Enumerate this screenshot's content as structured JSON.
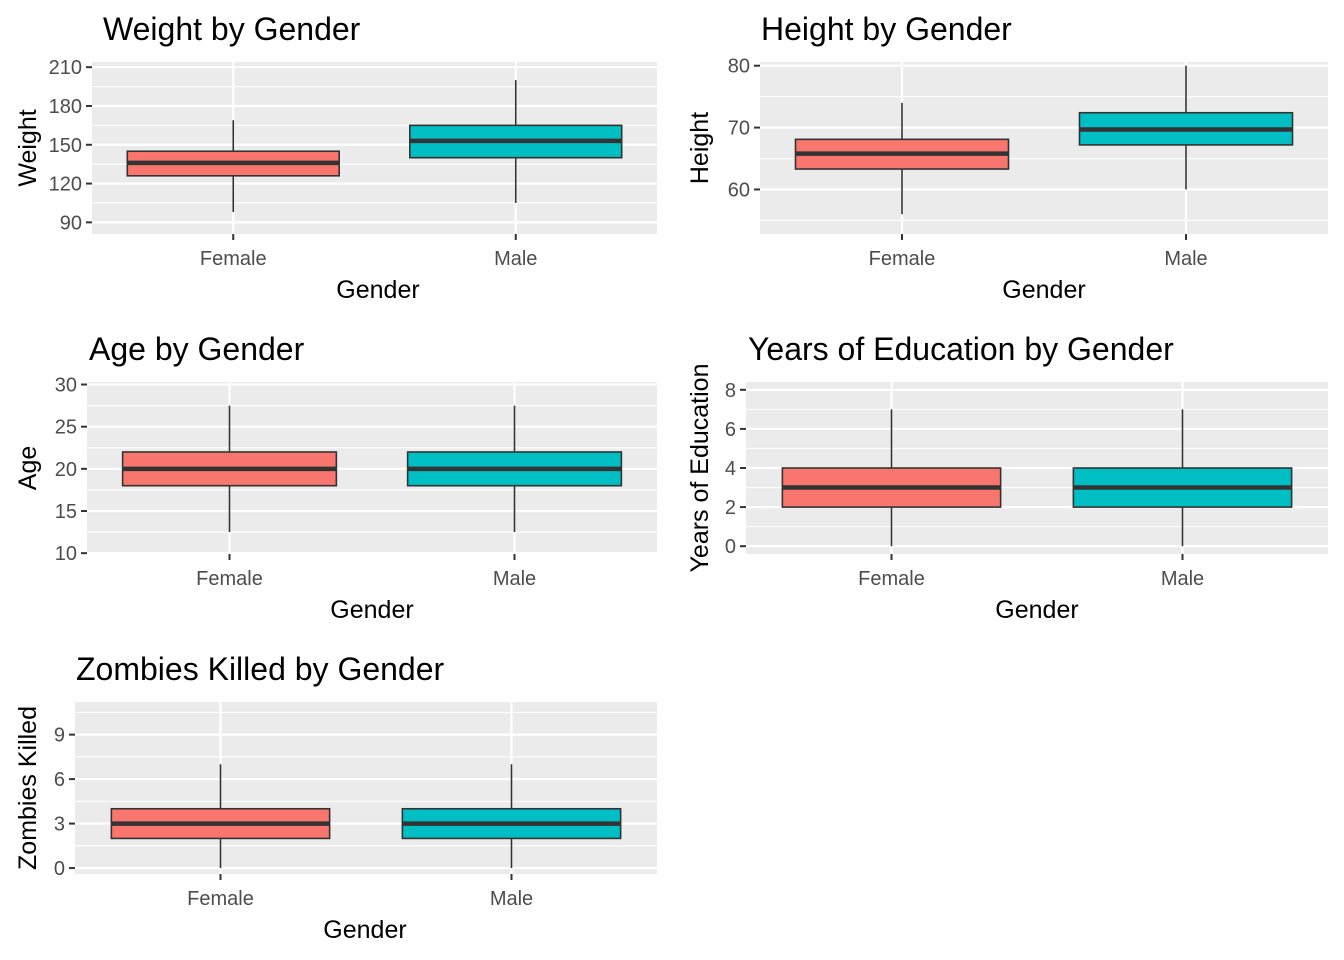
{
  "colors": {
    "female": "#F8766D",
    "male": "#00BFC4",
    "panel_bg": "#EBEBEB",
    "grid": "#FFFFFF",
    "median": "#333333",
    "tick_text": "#4D4D4D"
  },
  "chart_data": [
    {
      "type": "box",
      "title": "Weight by Gender",
      "xlabel": "Gender",
      "ylabel": "Weight",
      "categories": [
        "Female",
        "Male"
      ],
      "yticks": [
        90,
        120,
        150,
        180,
        210
      ],
      "ytick_labels": [
        "90",
        "120",
        "150",
        "180",
        "210"
      ],
      "ylim": [
        81,
        214
      ],
      "boxes": [
        {
          "group": "Female",
          "min": 98,
          "q1": 126,
          "median": 136,
          "q3": 145,
          "max": 169
        },
        {
          "group": "Male",
          "min": 105,
          "q1": 140,
          "median": 153,
          "q3": 165,
          "max": 200
        }
      ],
      "grid": true,
      "legend": "none"
    },
    {
      "type": "box",
      "title": "Height by Gender",
      "xlabel": "Gender",
      "ylabel": "Height",
      "categories": [
        "Female",
        "Male"
      ],
      "yticks": [
        60,
        70,
        80
      ],
      "ytick_labels": [
        "60",
        "70",
        "80"
      ],
      "ylim": [
        52.8,
        80.6
      ],
      "boxes": [
        {
          "group": "Female",
          "min": 56,
          "q1": 63.3,
          "median": 65.8,
          "q3": 68.1,
          "max": 74
        },
        {
          "group": "Male",
          "min": 60,
          "q1": 67.2,
          "median": 69.7,
          "q3": 72.4,
          "max": 80
        }
      ],
      "grid": true,
      "legend": "none"
    },
    {
      "type": "box",
      "title": "Age by Gender",
      "xlabel": "Gender",
      "ylabel": "Age",
      "categories": [
        "Female",
        "Male"
      ],
      "yticks": [
        10,
        15,
        20,
        25,
        30
      ],
      "ytick_labels": [
        "10",
        "15",
        "20",
        "25",
        "30"
      ],
      "ylim": [
        9.9,
        30.3
      ],
      "boxes": [
        {
          "group": "Female",
          "min": 12.5,
          "q1": 18,
          "median": 20,
          "q3": 22,
          "max": 27.5
        },
        {
          "group": "Male",
          "min": 12.5,
          "q1": 18,
          "median": 20,
          "q3": 22,
          "max": 27.5
        }
      ],
      "grid": true,
      "legend": "none"
    },
    {
      "type": "box",
      "title": "Years of Education by Gender",
      "xlabel": "Gender",
      "ylabel": "Years of Education",
      "categories": [
        "Female",
        "Male"
      ],
      "yticks": [
        0,
        2,
        4,
        6,
        8
      ],
      "ytick_labels": [
        "0",
        "2",
        "4",
        "6",
        "8"
      ],
      "ylim": [
        -0.4,
        8.4
      ],
      "boxes": [
        {
          "group": "Female",
          "min": 0,
          "q1": 2,
          "median": 3,
          "q3": 4,
          "max": 7
        },
        {
          "group": "Male",
          "min": 0,
          "q1": 2,
          "median": 3,
          "q3": 4,
          "max": 7
        }
      ],
      "grid": true,
      "legend": "none"
    },
    {
      "type": "box",
      "title": "Zombies Killed by Gender",
      "xlabel": "Gender",
      "ylabel": "Zombies Killed",
      "categories": [
        "Female",
        "Male"
      ],
      "yticks": [
        0,
        3,
        6,
        9
      ],
      "ytick_labels": [
        "0",
        "3",
        "6",
        "9"
      ],
      "ylim": [
        -0.4,
        11.2
      ],
      "boxes": [
        {
          "group": "Female",
          "min": 0,
          "q1": 2,
          "median": 3,
          "q3": 4,
          "max": 7
        },
        {
          "group": "Male",
          "min": 0,
          "q1": 2,
          "median": 3,
          "q3": 4,
          "max": 7
        }
      ],
      "grid": true,
      "legend": "none"
    }
  ]
}
